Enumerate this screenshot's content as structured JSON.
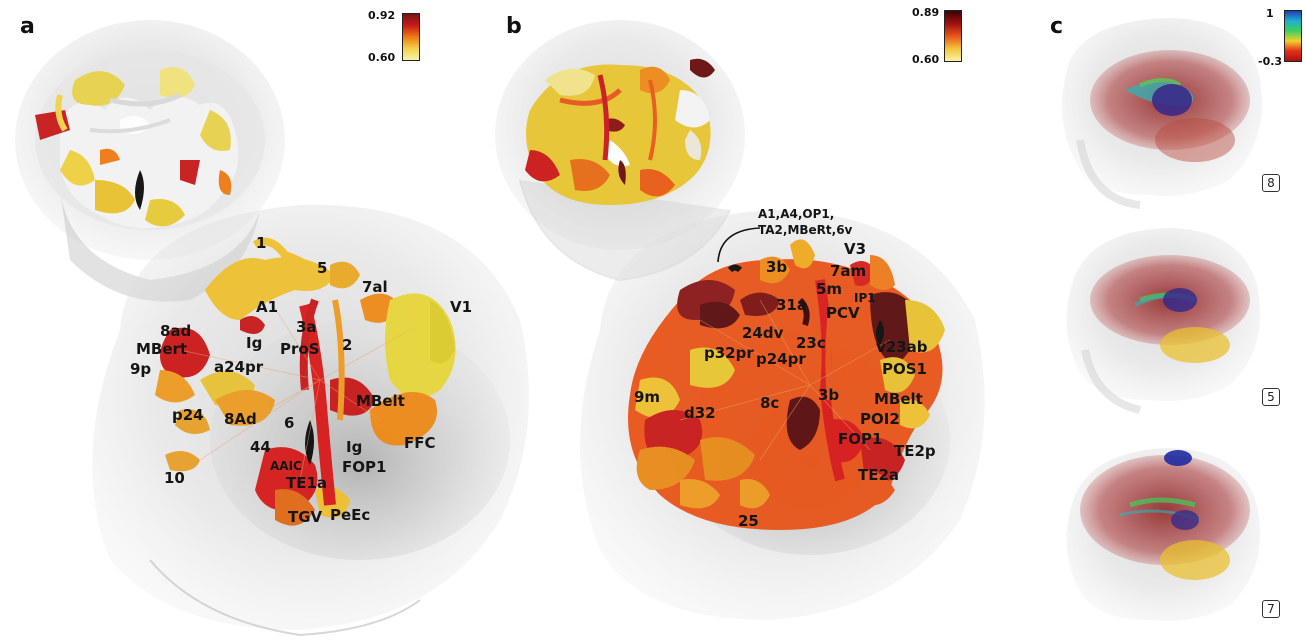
{
  "panels": {
    "a": {
      "letter": "a",
      "colorbar": {
        "max": "0.92",
        "min": "0.60",
        "colors": [
          "#7a1414",
          "#c81a1a",
          "#ee7a12",
          "#f2d24a",
          "#f7f4a8"
        ]
      },
      "labels": [
        "1",
        "5",
        "7al",
        "V1",
        "A1",
        "3a",
        "8ad",
        "Ig",
        "ProS",
        "2",
        "MBert",
        "9p",
        "a24pr",
        "p24",
        "8Ad",
        "MBelt",
        "6",
        "44",
        "Ig",
        "FFC",
        "AAIC",
        "FOP1",
        "TE1a",
        "10",
        "TGV",
        "PeEc"
      ]
    },
    "b": {
      "letter": "b",
      "colorbar": {
        "max": "0.89",
        "min": "0.60",
        "colors": [
          "#3a0505",
          "#9e1010",
          "#e8551a",
          "#f3c23a",
          "#f9f4a5"
        ]
      },
      "annotation_line1": "A1,A4,OP1,",
      "annotation_line2": "TA2,MBeRt,6v",
      "labels": [
        "V3",
        "3b",
        "7am",
        "5m",
        "IP1",
        "31a",
        "PCV",
        "24dv",
        "23c",
        "v23ab",
        "p32pr",
        "p24pr",
        "POS1",
        "9m",
        "8c",
        "3b",
        "MBelt",
        "d32",
        "POI2",
        "FOP1",
        "TE2p",
        "TE2a",
        "25"
      ]
    },
    "c": {
      "letter": "c",
      "colorbar": {
        "max": "1",
        "min": "-0.3",
        "colors": [
          "#1f3fb0",
          "#20b0d0",
          "#3fcf5a",
          "#f2d02a",
          "#e0301a",
          "#b01010"
        ]
      },
      "boxes": [
        "8",
        "5",
        "7"
      ]
    }
  }
}
